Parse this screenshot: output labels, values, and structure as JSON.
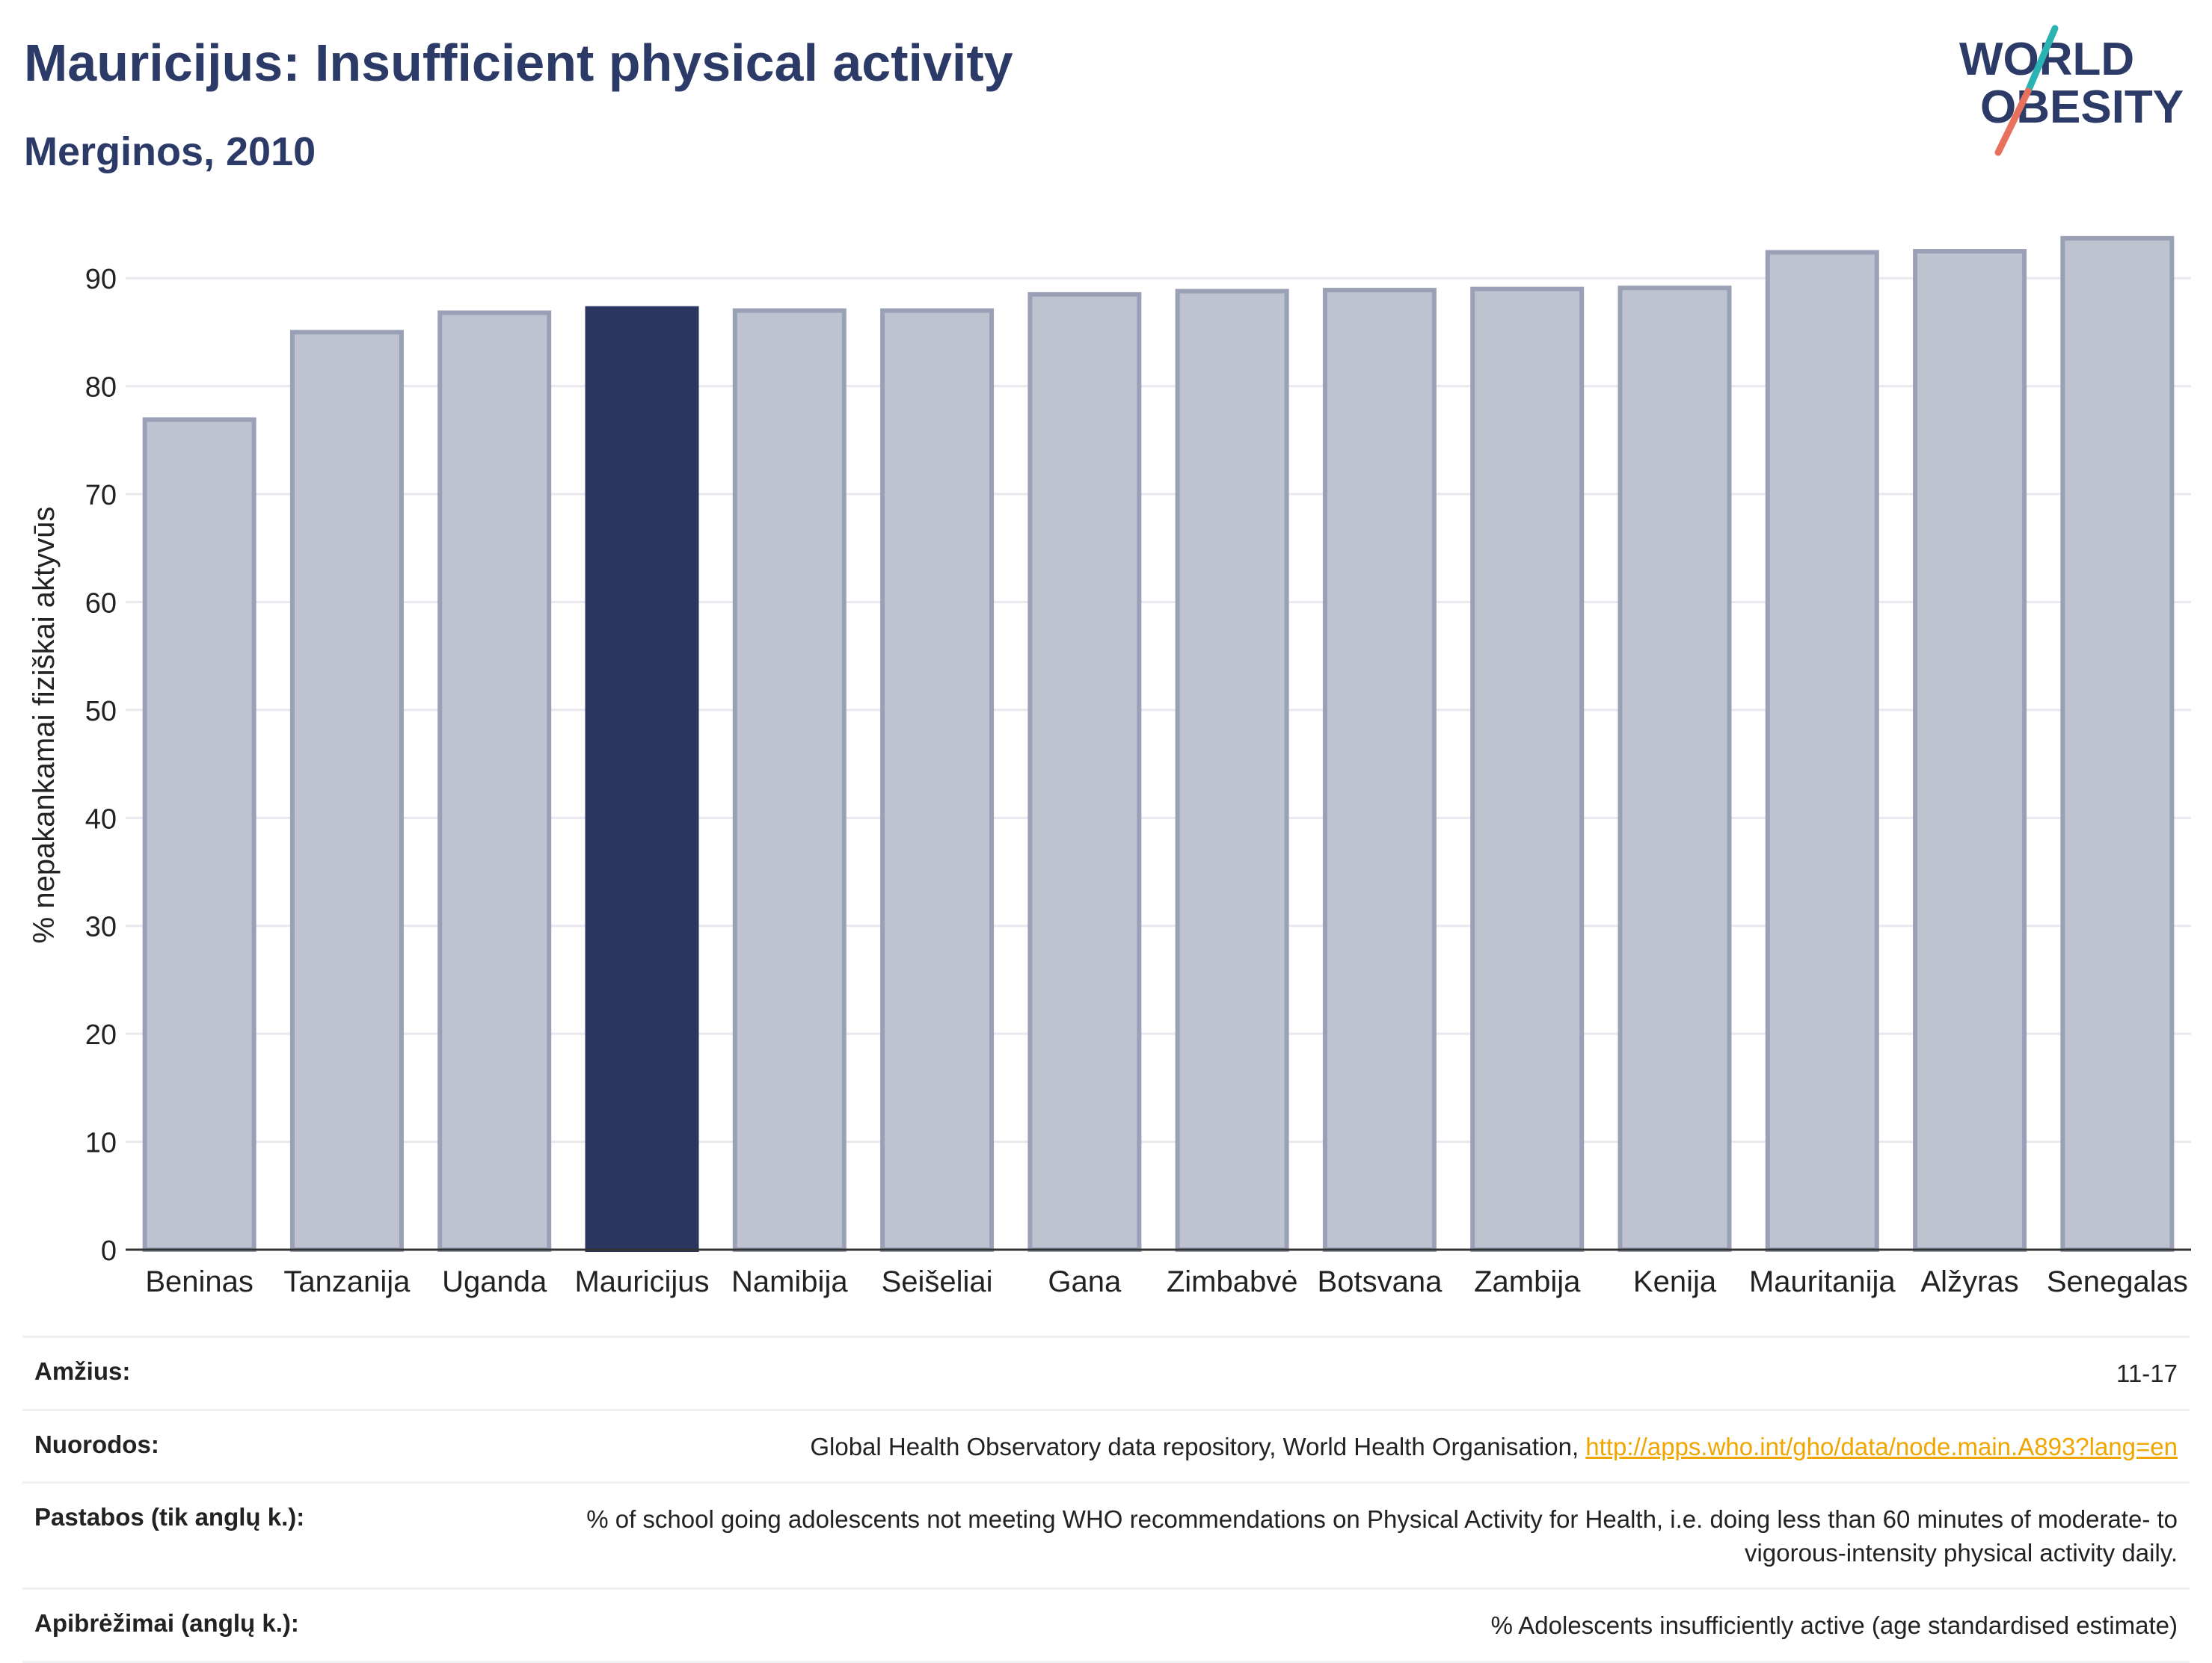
{
  "header": {
    "title": "Mauricijus: Insufficient physical activity",
    "subtitle": "Merginos, 2010"
  },
  "logo": {
    "line1": "WORLD",
    "line2": "OBESITY"
  },
  "chart_data": {
    "type": "bar",
    "categories": [
      "Beninas",
      "Tanzanija",
      "Uganda",
      "Mauricijus",
      "Namibija",
      "Seišeliai",
      "Gana",
      "Zimbabvė",
      "Botsvana",
      "Zambija",
      "Kenija",
      "Mauritanija",
      "Alžyras",
      "Senegalas"
    ],
    "values": [
      76.9,
      85.0,
      86.8,
      87.2,
      87.0,
      87.0,
      88.5,
      88.8,
      88.9,
      89.0,
      89.1,
      92.4,
      92.5,
      93.7
    ],
    "highlight": "Mauricijus",
    "ylabel": "% nepakankamai fiziškai aktyvūs",
    "ylim": [
      0,
      95
    ],
    "yticks": [
      0,
      10,
      20,
      30,
      40,
      50,
      60,
      70,
      80,
      90
    ],
    "grid": true,
    "colors": {
      "bar": "#bfc3cf",
      "bar_edge": "#9aa1b7",
      "highlight": "#2b3660",
      "grid": "#e8e8ee",
      "axis": "#333333"
    }
  },
  "meta": [
    {
      "label": "Amžius:",
      "value": "11-17"
    },
    {
      "label": "Nuorodos:",
      "value": "Global Health Observatory data repository, World Health Organisation, ",
      "link": "http://apps.who.int/gho/data/node.main.A893?lang=en"
    },
    {
      "label": "Pastabos (tik anglų k.):",
      "value": "% of school going adolescents not meeting WHO recommendations on Physical Activity for Health, i.e. doing less than 60 minutes of moderate- to vigorous-intensity physical activity daily."
    },
    {
      "label": "Apibrėžimai (anglų k.):",
      "value": "% Adolescents insufficiently active (age standardised estimate)"
    }
  ]
}
